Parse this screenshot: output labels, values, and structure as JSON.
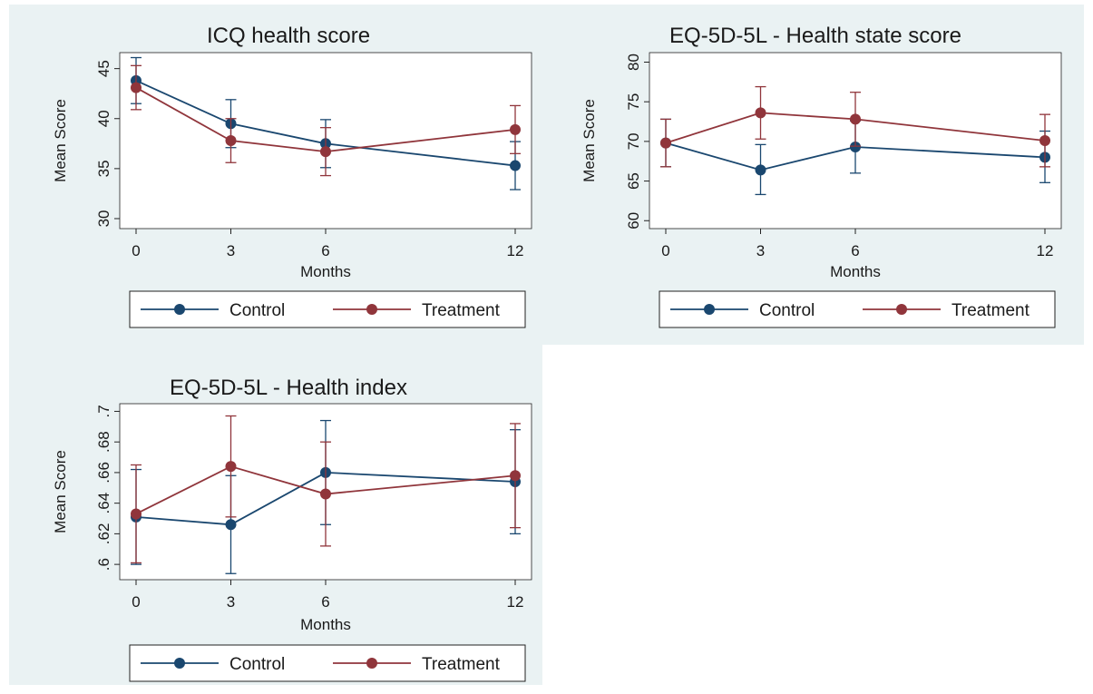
{
  "chart_data": [
    {
      "type": "line",
      "title": "ICQ health score",
      "xlabel": "Months",
      "ylabel": "Mean Score",
      "x": [
        0,
        3,
        6,
        12
      ],
      "x_tick_labels": [
        "0",
        "3",
        "6",
        "12"
      ],
      "y_ticks": [
        30,
        35,
        40,
        45
      ],
      "y_tick_labels": [
        "30",
        "35",
        "40",
        "45"
      ],
      "xlim": [
        0,
        12
      ],
      "ylim": [
        29,
        46.6
      ],
      "grid": false,
      "legend_position": "bottom",
      "series": [
        {
          "name": "Control",
          "color": "#1a476f",
          "values": [
            43.8,
            39.5,
            37.5,
            35.3
          ],
          "ci_low": [
            41.5,
            37.1,
            35.1,
            32.9
          ],
          "ci_high": [
            46.1,
            41.9,
            39.9,
            37.7
          ]
        },
        {
          "name": "Treatment",
          "color": "#90353b",
          "values": [
            43.1,
            37.8,
            36.7,
            38.9
          ],
          "ci_low": [
            40.9,
            35.6,
            34.3,
            36.5
          ],
          "ci_high": [
            45.3,
            40.0,
            39.1,
            41.3
          ]
        }
      ]
    },
    {
      "type": "line",
      "title": "EQ-5D-5L - Health state score",
      "xlabel": "Months",
      "ylabel": "Mean Score",
      "x": [
        0,
        3,
        6,
        12
      ],
      "x_tick_labels": [
        "0",
        "3",
        "6",
        "12"
      ],
      "y_ticks": [
        60,
        65,
        70,
        75,
        80
      ],
      "y_tick_labels": [
        "60",
        "65",
        "70",
        "75",
        "80"
      ],
      "xlim": [
        0,
        12
      ],
      "ylim": [
        59,
        81.2
      ],
      "grid": false,
      "legend_position": "bottom",
      "series": [
        {
          "name": "Control",
          "color": "#1a476f",
          "values": [
            69.8,
            66.4,
            69.3,
            68.0
          ],
          "ci_low": [
            66.8,
            63.3,
            66.0,
            64.8
          ],
          "ci_high": [
            72.8,
            69.6,
            72.6,
            71.3
          ]
        },
        {
          "name": "Treatment",
          "color": "#90353b",
          "values": [
            69.8,
            73.6,
            72.8,
            70.1
          ],
          "ci_low": [
            66.8,
            70.3,
            69.4,
            66.8
          ],
          "ci_high": [
            72.8,
            76.9,
            76.2,
            73.4
          ]
        }
      ]
    },
    {
      "type": "line",
      "title": "EQ-5D-5L - Health index",
      "xlabel": "Months",
      "ylabel": "Mean Score",
      "x": [
        0,
        3,
        6,
        12
      ],
      "x_tick_labels": [
        "0",
        "3",
        "6",
        "12"
      ],
      "y_ticks": [
        0.6,
        0.62,
        0.64,
        0.66,
        0.68,
        0.7
      ],
      "y_tick_labels": [
        ".6",
        ".62",
        ".64",
        ".66",
        ".68",
        ".7"
      ],
      "xlim": [
        0,
        12
      ],
      "ylim": [
        0.59,
        0.705
      ],
      "grid": false,
      "legend_position": "bottom",
      "series": [
        {
          "name": "Control",
          "color": "#1a476f",
          "values": [
            0.631,
            0.626,
            0.66,
            0.654
          ],
          "ci_low": [
            0.6,
            0.594,
            0.626,
            0.62
          ],
          "ci_high": [
            0.662,
            0.658,
            0.694,
            0.688
          ]
        },
        {
          "name": "Treatment",
          "color": "#90353b",
          "values": [
            0.633,
            0.664,
            0.646,
            0.658
          ],
          "ci_low": [
            0.601,
            0.631,
            0.612,
            0.624
          ],
          "ci_high": [
            0.665,
            0.697,
            0.68,
            0.692
          ]
        }
      ]
    }
  ],
  "colors": {
    "outer_background": "#eaf2f3",
    "plot_background": "#ffffff",
    "control": "#1a476f",
    "treatment": "#90353b"
  }
}
